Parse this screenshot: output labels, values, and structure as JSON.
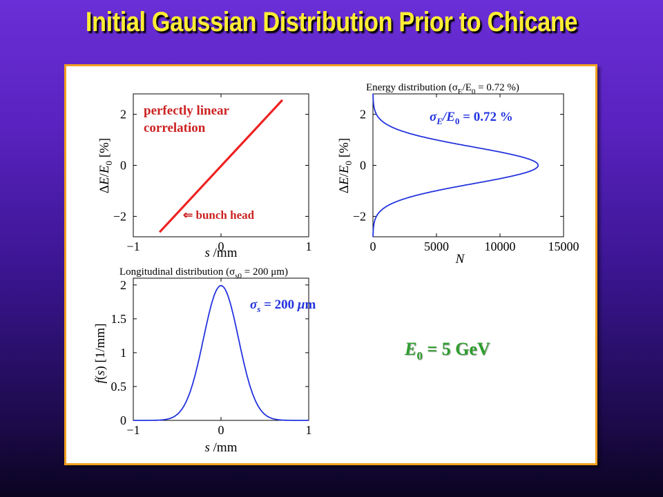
{
  "slide": {
    "title": "Initial Gaussian Distribution Prior to Chicane",
    "energy_label_main": "E",
    "energy_label_sub": "0",
    "energy_label_rest": " = 5 GeV"
  },
  "colors": {
    "title": "#ffee33",
    "panel_border": "#f0a020",
    "series_red": "#ee2222",
    "series_blue": "#2233dd",
    "annotation_red": "#cc2222",
    "annotation_blue": "#2233dd",
    "annotation_green": "#2e9e2e"
  },
  "chart_data": [
    {
      "id": "correlation",
      "type": "scatter",
      "title": "",
      "xlabel_italic": "s",
      "xlabel_rest": " /mm",
      "ylabel": "ΔE/E0 [%]",
      "xlim": [
        -1,
        1
      ],
      "ylim": [
        -2.8,
        2.8
      ],
      "xticks": [
        "−1",
        "0",
        "1"
      ],
      "yticks": [
        "2",
        "0",
        "−2"
      ],
      "ytick_values": [
        2,
        0,
        -2
      ],
      "xtick_values": [
        -1,
        0,
        1
      ],
      "line": {
        "x": [
          -0.7,
          0.7
        ],
        "y": [
          -2.62,
          2.56
        ]
      },
      "annotations": {
        "correlation_line1": "perfectly linear",
        "correlation_line2": "correlation",
        "bunch_head": "⇐ bunch head"
      }
    },
    {
      "id": "energy",
      "type": "line",
      "title": "Energy distribution (σE/E0 = 0.72 %)",
      "title_parts": {
        "a": "Energy distribution (σ",
        "b": "E",
        "c": "/E",
        "d": "0",
        "e": " = 0.72 %)"
      },
      "xlabel": "N",
      "ylabel": "ΔE/E0 [%]",
      "xlim": [
        0,
        15000
      ],
      "ylim": [
        -2.8,
        2.8
      ],
      "xticks": [
        "0",
        "5000",
        "10000",
        "15000"
      ],
      "xtick_values": [
        0,
        5000,
        10000,
        15000
      ],
      "yticks": [
        "2",
        "0",
        "−2"
      ],
      "ytick_values": [
        2,
        0,
        -2
      ],
      "sigma": 0.72,
      "peak_N": 13000,
      "annotation": {
        "sigma": "σ",
        "sub_E": "E",
        "slash": "/E",
        "sub_0": "0",
        "rest": " = 0.72 %"
      }
    },
    {
      "id": "longitudinal",
      "type": "line",
      "title": "Longitudinal distribution (σs0 = 200 μm)",
      "title_parts": {
        "a": "Longitudinal distribution (σ",
        "b": "s0",
        "c": " = 200 μm)"
      },
      "xlabel_italic": "s",
      "xlabel_rest": " /mm",
      "ylabel": "f(s) [1/mm]",
      "xlim": [
        -1,
        1
      ],
      "ylim": [
        0,
        2.1
      ],
      "xticks": [
        "−1",
        "0",
        "1"
      ],
      "xtick_values": [
        -1,
        0,
        1
      ],
      "yticks": [
        "2",
        "1.5",
        "1",
        "0.5",
        "0"
      ],
      "ytick_values": [
        2,
        1.5,
        1,
        0.5,
        0
      ],
      "sigma_mm": 0.2,
      "peak": 1.99,
      "annotation": {
        "sigma": "σ",
        "sub_s": "s",
        "rest": " = 200 ",
        "mu": "μ",
        "unit": "m"
      }
    }
  ]
}
